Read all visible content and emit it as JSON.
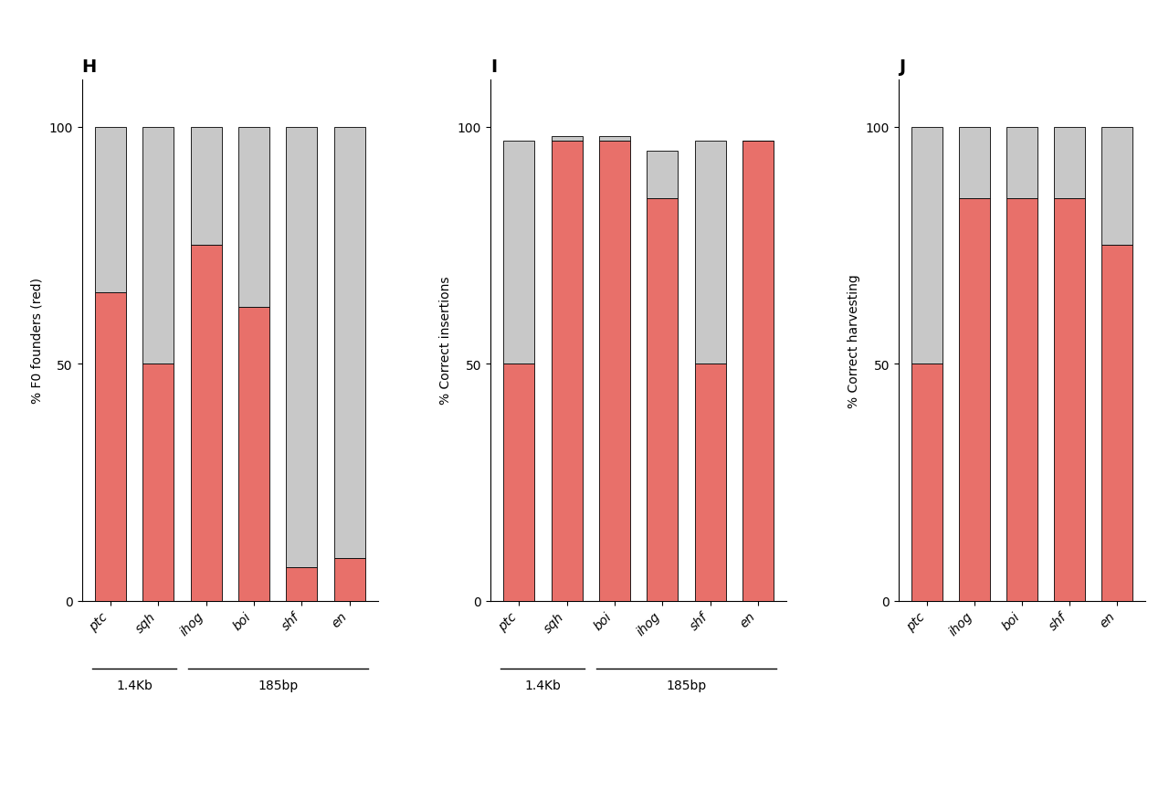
{
  "chart_data": [
    {
      "type": "bar",
      "stacked": true,
      "title": "H",
      "categories": [
        "ptc",
        "sqh",
        "ihog",
        "boi",
        "shf",
        "en"
      ],
      "series": [
        {
          "color": "#E8706A",
          "values": [
            65,
            50,
            75,
            62,
            7,
            9
          ]
        },
        {
          "color": "#C8C8C8",
          "values": [
            35,
            50,
            25,
            38,
            93,
            91
          ]
        }
      ],
      "y_label": "% F0 founders (red)",
      "ylim": [
        0,
        110
      ],
      "yticks": [
        0,
        50,
        100
      ],
      "grid": false,
      "groups": [
        {
          "label": "1.4Kb",
          "from": "ptc",
          "to": "sqh"
        },
        {
          "label": "185bp",
          "from": "ihog",
          "to": "en"
        }
      ]
    },
    {
      "type": "bar",
      "stacked": true,
      "title": "I",
      "categories": [
        "ptc",
        "sqh",
        "boi",
        "ihog",
        "shf",
        "en"
      ],
      "series": [
        {
          "color": "#E8706A",
          "values": [
            50,
            97,
            97,
            85,
            50,
            97
          ]
        },
        {
          "color": "#C8C8C8",
          "values": [
            47,
            1,
            1,
            10,
            47,
            0
          ]
        }
      ],
      "y_label": "% Correct insertions",
      "ylim": [
        0,
        110
      ],
      "yticks": [
        0,
        50,
        100
      ],
      "grid": false,
      "groups": [
        {
          "label": "1.4Kb",
          "from": "ptc",
          "to": "sqh"
        },
        {
          "label": "185bp",
          "from": "boi",
          "to": "en"
        }
      ]
    },
    {
      "type": "bar",
      "stacked": true,
      "title": "J",
      "categories": [
        "ptc",
        "ihog",
        "boi",
        "shf",
        "en"
      ],
      "series": [
        {
          "color": "#E8706A",
          "values": [
            50,
            85,
            85,
            85,
            75
          ]
        },
        {
          "color": "#C8C8C8",
          "values": [
            50,
            15,
            15,
            15,
            25
          ]
        }
      ],
      "y_label": "% Correct harvesting",
      "ylim": [
        0,
        110
      ],
      "yticks": [
        0,
        50,
        100
      ],
      "grid": false
    }
  ]
}
